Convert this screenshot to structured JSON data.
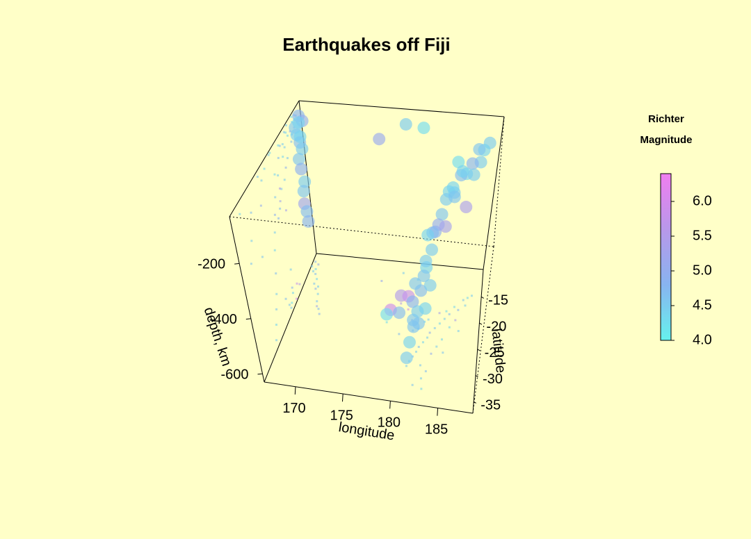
{
  "chart_data": {
    "type": "scatter3d",
    "title": "Earthquakes off Fiji",
    "xlabel": "longitude",
    "ylabel": "latitude",
    "zlabel": "depth, km",
    "xlim": [
      166.7,
      188.7
    ],
    "ylim": [
      -37.2,
      -9.8
    ],
    "zlim": [
      -630,
      -30
    ],
    "xticks": [
      170,
      175,
      180,
      185
    ],
    "yticks": [
      -15,
      -20,
      -25,
      -30,
      -35
    ],
    "zticks": [
      -200,
      -400,
      -600
    ],
    "x": [
      167.0,
      167.5,
      166.8,
      167.2,
      167.6,
      168.0,
      167.9,
      168.3,
      168.8,
      169.0,
      169.2,
      169.5,
      168.5,
      167.4,
      169.8,
      178.5,
      176.0,
      180.5,
      179.0,
      180.0,
      178.0,
      180.7,
      177.8,
      181.0,
      179.5,
      187.5,
      187.0,
      186.5,
      186.8,
      186.0,
      185.5,
      185.0,
      184.5,
      184.0,
      184.6,
      183.5,
      183.0,
      182.8,
      182.4,
      182.0,
      181.8,
      181.5,
      181.2,
      181.0,
      182.5,
      183.5,
      184.0,
      184.5,
      183.2,
      182.8,
      182.0,
      185.2,
      183.8,
      182.6,
      181.6,
      182.2,
      185.8,
      186.3,
      184.8,
      183.0
    ],
    "y": [
      -11.5,
      -12.0,
      -12.5,
      -13.5,
      -14.0,
      -15.0,
      -16.0,
      -17.0,
      -18.0,
      -19.5,
      -20.5,
      -21.0,
      -16.5,
      -13.0,
      -22.0,
      -12.0,
      -14.0,
      -13.0,
      -18.0,
      -19.0,
      -20.0,
      -21.0,
      -22.0,
      -23.0,
      -24.0,
      -15.0,
      -15.5,
      -16.0,
      -17.0,
      -18.0,
      -17.5,
      -19.0,
      -20.0,
      -21.0,
      -18.5,
      -22.0,
      -23.0,
      -24.0,
      -25.0,
      -26.0,
      -27.0,
      -28.0,
      -29.0,
      -30.0,
      -29.5,
      -27.0,
      -25.5,
      -24.0,
      -30.5,
      -32.0,
      -33.5,
      -21.5,
      -19.0,
      -20.5,
      -22.5,
      -21.0,
      -20.0,
      -22.0,
      -26.5,
      -34.0
    ],
    "z": [
      -60,
      -70,
      -90,
      -100,
      -120,
      -80,
      -150,
      -170,
      -200,
      -210,
      -240,
      -260,
      -100,
      -60,
      -280,
      -50,
      -80,
      -40,
      -600,
      -580,
      -620,
      -560,
      -600,
      -590,
      -550,
      -40,
      -60,
      -50,
      -80,
      -70,
      -120,
      -100,
      -150,
      -130,
      -60,
      -200,
      -250,
      -300,
      -350,
      -420,
      -480,
      -520,
      -560,
      -600,
      -300,
      -150,
      -80,
      -60,
      -120,
      -200,
      -260,
      -40,
      -300,
      -500,
      -610,
      -580,
      -200,
      -40,
      -50,
      -70
    ],
    "mag": [
      4.8,
      5.0,
      4.6,
      4.5,
      4.7,
      4.4,
      4.6,
      4.9,
      4.5,
      4.6,
      5.2,
      4.7,
      4.5,
      4.4,
      4.8,
      4.5,
      5.1,
      4.3,
      5.5,
      5.8,
      5.9,
      4.8,
      4.3,
      4.6,
      4.7,
      4.5,
      4.4,
      4.6,
      4.5,
      4.8,
      4.4,
      4.7,
      4.5,
      4.4,
      4.3,
      4.6,
      4.9,
      4.5,
      4.4,
      4.7,
      4.5,
      4.6,
      4.4,
      4.5,
      4.6,
      5.0,
      4.5,
      4.4,
      4.7,
      4.5,
      4.6,
      4.4,
      5.3,
      4.5,
      4.6,
      4.4,
      5.4,
      4.5,
      4.6,
      4.4
    ],
    "colorbar": {
      "title": [
        "Richter",
        "Magnitude"
      ],
      "clim": [
        4.0,
        6.4
      ],
      "ticks": [
        {
          "value": 4,
          "label": "4.0"
        },
        4.5,
        {
          "value": 5,
          "label": "5.0"
        },
        5.5,
        {
          "value": 6,
          "label": "6.0"
        }
      ],
      "colors": [
        "#66f2ee",
        "#88b4f0",
        "#b898ea",
        "#f07ef0"
      ]
    }
  }
}
